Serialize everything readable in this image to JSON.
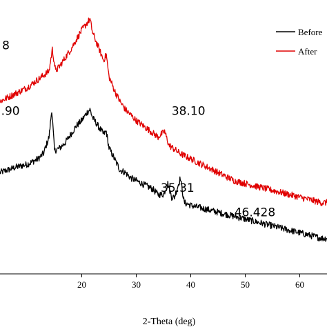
{
  "chart_data": {
    "type": "line",
    "title": "",
    "xlabel": "2-Theta (deg)",
    "ylabel": "",
    "xlim": [
      5,
      65
    ],
    "ylim": [
      0,
      100
    ],
    "x_ticks": [
      20,
      30,
      40,
      50,
      60
    ],
    "grid": false,
    "legend": "top-right",
    "legend_entries": [
      "Before",
      "After"
    ],
    "annotations": [
      {
        "text": "8",
        "x": 5.4,
        "y": 82
      },
      {
        "text": ".90",
        "x": 5.2,
        "y": 58
      },
      {
        "text": "38.10",
        "x": 36.5,
        "y": 58
      },
      {
        "text": "35.31",
        "x": 34.5,
        "y": 30
      },
      {
        "text": "46.428",
        "x": 48.0,
        "y": 21
      }
    ],
    "series": [
      {
        "name": "Before",
        "color": "#000000",
        "x": [
          5,
          8,
          10,
          12,
          13,
          14,
          14.5,
          15,
          16,
          17,
          18,
          19,
          20,
          21,
          21.5,
          22,
          23,
          24,
          24.5,
          25,
          26,
          27,
          28,
          29,
          30,
          31,
          32,
          33,
          34,
          35,
          35.8,
          36.5,
          37,
          38.1,
          38.8,
          40,
          42,
          44,
          46,
          48,
          50,
          52,
          54,
          56,
          58,
          60,
          62,
          64,
          65
        ],
        "y": [
          37,
          39,
          40,
          42,
          44,
          50,
          60,
          45,
          46,
          48,
          51,
          54,
          56,
          59,
          60,
          57,
          54,
          51,
          52,
          46,
          42,
          38,
          37,
          35,
          34,
          33,
          32,
          31,
          29,
          29,
          33,
          28,
          28,
          35,
          26,
          25,
          24,
          23,
          22,
          21,
          20,
          19,
          18,
          17,
          16,
          15,
          14,
          13,
          13
        ]
      },
      {
        "name": "After",
        "color": "#e00000",
        "x": [
          5,
          8,
          10,
          12,
          14,
          14.6,
          15.2,
          16,
          18,
          20,
          21.5,
          22,
          23,
          24,
          24.5,
          25,
          26,
          27,
          28,
          30,
          32,
          34,
          35.2,
          36,
          38,
          40,
          42,
          44,
          46,
          48,
          50,
          52,
          54,
          56,
          58,
          60,
          62,
          64,
          65
        ],
        "y": [
          63,
          66,
          68,
          71,
          74,
          82,
          74,
          76,
          82,
          89,
          93,
          88,
          83,
          78,
          80,
          72,
          67,
          63,
          60,
          56,
          53,
          50,
          52,
          47,
          44,
          42,
          40,
          38,
          36,
          34,
          33,
          32,
          31,
          30,
          29,
          28,
          27,
          26,
          26
        ]
      }
    ]
  }
}
